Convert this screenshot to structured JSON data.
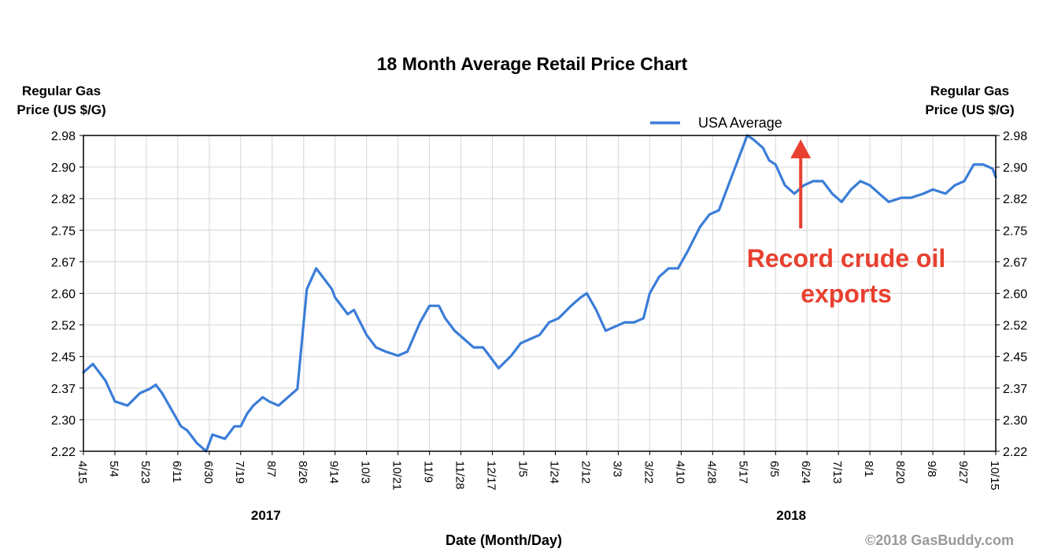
{
  "chart_data": {
    "type": "line",
    "title": "18 Month Average Retail Price Chart",
    "ylabel_left": [
      "Regular Gas",
      "Price (US $/G)"
    ],
    "ylabel_right": [
      "Regular Gas",
      "Price (US $/G)"
    ],
    "xlabel": "Date (Month/Day)",
    "ylim": [
      2.22,
      2.98
    ],
    "yticks": [
      "2.98",
      "2.90",
      "2.82",
      "2.75",
      "2.67",
      "2.60",
      "2.52",
      "2.45",
      "2.37",
      "2.30",
      "2.22"
    ],
    "xticks": [
      "4/15",
      "5/4",
      "5/23",
      "6/11",
      "6/30",
      "7/19",
      "8/7",
      "8/26",
      "9/14",
      "10/3",
      "10/21",
      "11/9",
      "11/28",
      "12/17",
      "1/5",
      "1/24",
      "2/12",
      "3/3",
      "3/22",
      "4/10",
      "4/28",
      "5/17",
      "6/5",
      "6/24",
      "7/13",
      "8/1",
      "8/20",
      "9/8",
      "9/27",
      "10/15"
    ],
    "years": [
      {
        "label": "2017",
        "at_tick": 5.8
      },
      {
        "label": "2018",
        "at_tick": 22.5
      }
    ],
    "grid": true,
    "legend_position": "top-right",
    "series": [
      {
        "name": "USA Average",
        "color": "#3b7dd8",
        "x": [
          0,
          0.3,
          0.7,
          1.0,
          1.4,
          1.8,
          2.1,
          2.3,
          2.5,
          2.8,
          3.1,
          3.3,
          3.6,
          3.9,
          4.1,
          4.5,
          4.8,
          5.0,
          5.2,
          5.4,
          5.7,
          5.9,
          6.2,
          6.5,
          6.8,
          6.9,
          7.1,
          7.4,
          7.6,
          7.9,
          8.0,
          8.2,
          8.4,
          8.6,
          9.0,
          9.3,
          9.6,
          10.0,
          10.3,
          10.7,
          11.0,
          11.3,
          11.5,
          11.8,
          12.1,
          12.4,
          12.7,
          12.9,
          13.2,
          13.6,
          13.9,
          14.2,
          14.5,
          14.8,
          15.1,
          15.5,
          15.8,
          16.0,
          16.3,
          16.6,
          16.9,
          17.2,
          17.5,
          17.8,
          18.0,
          18.3,
          18.6,
          18.9,
          19.2,
          19.6,
          19.9,
          20.2,
          20.5,
          20.8,
          21.1,
          21.3,
          21.6,
          21.8,
          22.0,
          22.3,
          22.6,
          22.9,
          23.2,
          23.5,
          23.8,
          24.1,
          24.4,
          24.7,
          25.0,
          25.3,
          25.6,
          26.0,
          26.3,
          26.7,
          27.0,
          27.4,
          27.7,
          28.0,
          28.3,
          28.6,
          28.9,
          29.0
        ],
        "values": [
          2.41,
          2.43,
          2.39,
          2.34,
          2.33,
          2.36,
          2.37,
          2.38,
          2.36,
          2.32,
          2.28,
          2.27,
          2.24,
          2.22,
          2.26,
          2.25,
          2.28,
          2.28,
          2.31,
          2.33,
          2.35,
          2.34,
          2.33,
          2.35,
          2.37,
          2.45,
          2.61,
          2.66,
          2.64,
          2.61,
          2.59,
          2.57,
          2.55,
          2.56,
          2.5,
          2.47,
          2.46,
          2.45,
          2.46,
          2.53,
          2.57,
          2.57,
          2.54,
          2.51,
          2.49,
          2.47,
          2.47,
          2.45,
          2.42,
          2.45,
          2.48,
          2.49,
          2.5,
          2.53,
          2.54,
          2.57,
          2.59,
          2.6,
          2.56,
          2.51,
          2.52,
          2.53,
          2.53,
          2.54,
          2.6,
          2.64,
          2.66,
          2.66,
          2.7,
          2.76,
          2.79,
          2.8,
          2.86,
          2.92,
          2.98,
          2.97,
          2.95,
          2.92,
          2.91,
          2.86,
          2.84,
          2.86,
          2.87,
          2.87,
          2.84,
          2.82,
          2.85,
          2.87,
          2.86,
          2.84,
          2.82,
          2.83,
          2.83,
          2.84,
          2.85,
          2.84,
          2.86,
          2.87,
          2.91,
          2.91,
          2.9,
          2.88
        ]
      }
    ],
    "annotation": {
      "lines": [
        "Record crude oil",
        "exports"
      ],
      "color": "#e8402f",
      "arrow_x_tick": 22.8
    }
  },
  "copyright": "©2018 GasBuddy.com"
}
